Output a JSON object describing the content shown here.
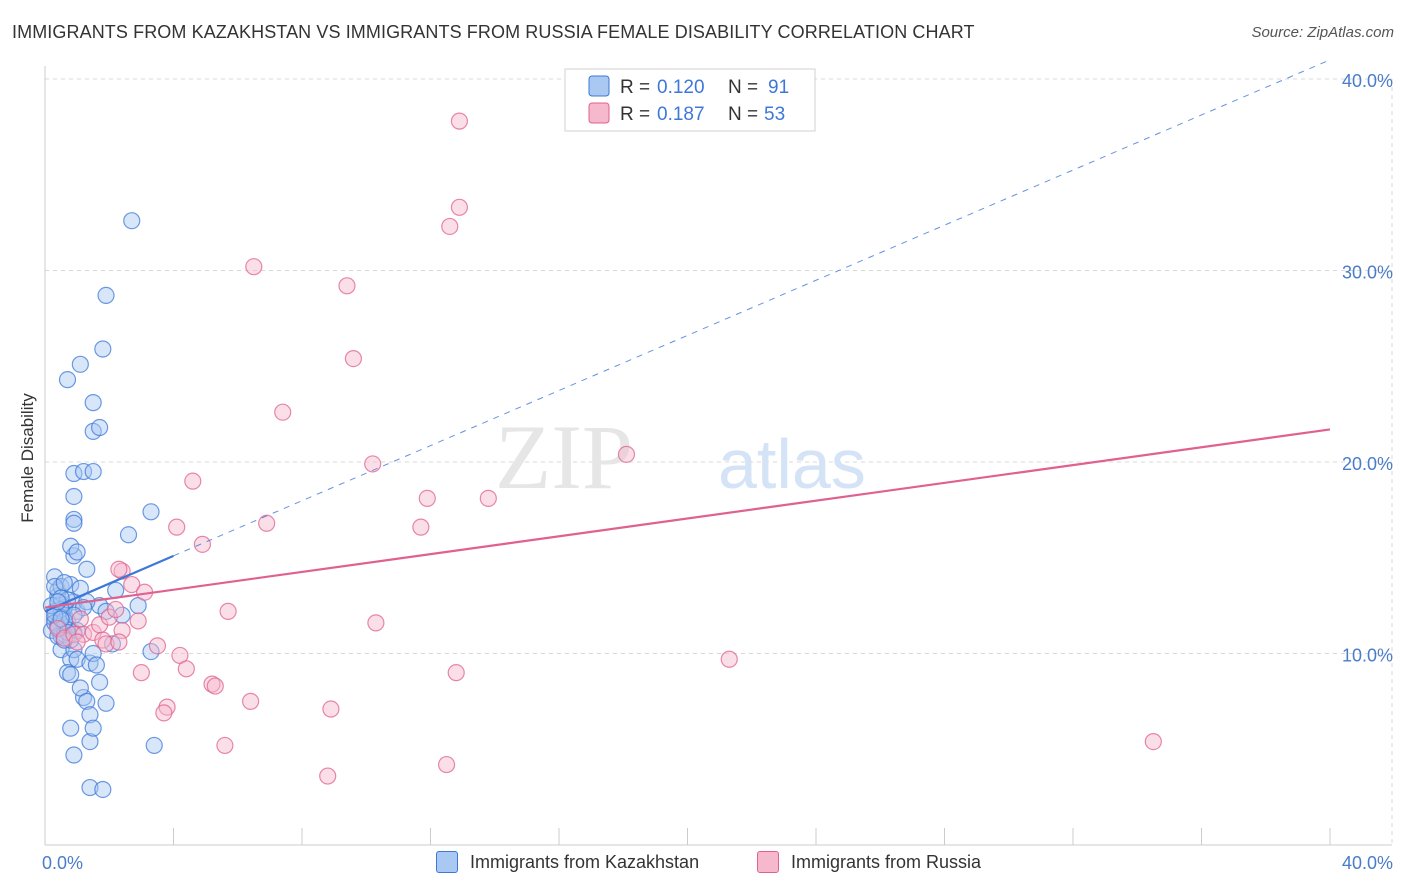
{
  "title": "IMMIGRANTS FROM KAZAKHSTAN VS IMMIGRANTS FROM RUSSIA FEMALE DISABILITY CORRELATION CHART",
  "source": "Source: ZipAtlas.com",
  "watermark": {
    "zip": "ZIP",
    "atlas": "atlas"
  },
  "colors": {
    "blue": "#3d78d8",
    "blue_fill": "#a9c8f2",
    "pink": "#e0608f",
    "pink_fill": "#f6b8cc",
    "grid": "#d9d9d9",
    "axis_text": "#4a7cc9"
  },
  "legend": {
    "r_label": "R =",
    "n_label": "N =",
    "series": [
      {
        "name": "Immigrants from Kazakhstan",
        "r": "0.120",
        "n": "91"
      },
      {
        "name": "Immigrants from Russia",
        "r": "0.187",
        "n": "53"
      }
    ]
  },
  "chart_data": {
    "type": "scatter",
    "title": "IMMIGRANTS FROM KAZAKHSTAN VS IMMIGRANTS FROM RUSSIA FEMALE DISABILITY CORRELATION CHART",
    "xlabel": "",
    "ylabel": "Female Disability",
    "xlim": [
      0,
      40
    ],
    "ylim": [
      0,
      40
    ],
    "x_tick_labels": [
      "0.0%",
      "40.0%"
    ],
    "y_ticks": [
      10,
      20,
      30,
      40
    ],
    "y_tick_labels": [
      "10.0%",
      "20.0%",
      "30.0%",
      "40.0%"
    ],
    "grid": true,
    "series": [
      {
        "name": "Immigrants from Kazakhstan",
        "color": "#3d78d8",
        "trend": {
          "x0": 0,
          "y0": 12.2,
          "x1": 4.0,
          "y1": 15.1,
          "dashed_extension_to": [
            40,
            41.0
          ]
        },
        "points": [
          [
            0.2,
            11.2
          ],
          [
            0.3,
            11.8
          ],
          [
            0.3,
            12.2
          ],
          [
            0.4,
            11.5
          ],
          [
            0.4,
            13.0
          ],
          [
            0.5,
            10.9
          ],
          [
            0.5,
            12.6
          ],
          [
            0.6,
            11.3
          ],
          [
            0.6,
            12.0
          ],
          [
            0.7,
            11.7
          ],
          [
            0.4,
            13.3
          ],
          [
            0.3,
            14.0
          ],
          [
            0.5,
            13.5
          ],
          [
            0.8,
            13.6
          ],
          [
            0.9,
            12.7
          ],
          [
            0.9,
            11.1
          ],
          [
            1.0,
            12.2
          ],
          [
            0.7,
            11.4
          ],
          [
            0.6,
            12.4
          ],
          [
            0.5,
            11.9
          ],
          [
            0.5,
            10.2
          ],
          [
            0.8,
            9.7
          ],
          [
            0.9,
            10.2
          ],
          [
            1.0,
            9.7
          ],
          [
            0.7,
            9.0
          ],
          [
            0.8,
            8.9
          ],
          [
            1.2,
            7.7
          ],
          [
            1.1,
            8.2
          ],
          [
            1.3,
            7.5
          ],
          [
            1.4,
            6.8
          ],
          [
            0.8,
            6.1
          ],
          [
            1.4,
            5.4
          ],
          [
            1.5,
            6.1
          ],
          [
            0.9,
            4.7
          ],
          [
            1.4,
            3.0
          ],
          [
            1.8,
            2.9
          ],
          [
            1.7,
            8.5
          ],
          [
            1.4,
            9.5
          ],
          [
            1.5,
            10.0
          ],
          [
            1.6,
            9.4
          ],
          [
            1.7,
            12.5
          ],
          [
            1.3,
            12.7
          ],
          [
            1.3,
            14.4
          ],
          [
            1.1,
            13.4
          ],
          [
            0.9,
            15.1
          ],
          [
            0.8,
            15.6
          ],
          [
            1.0,
            15.3
          ],
          [
            0.9,
            17.0
          ],
          [
            0.9,
            16.8
          ],
          [
            0.9,
            18.2
          ],
          [
            0.9,
            19.4
          ],
          [
            1.2,
            19.5
          ],
          [
            1.5,
            21.6
          ],
          [
            1.5,
            23.1
          ],
          [
            0.7,
            24.3
          ],
          [
            1.1,
            25.1
          ],
          [
            1.7,
            21.8
          ],
          [
            1.5,
            19.5
          ],
          [
            1.8,
            25.9
          ],
          [
            1.9,
            28.7
          ],
          [
            2.7,
            32.6
          ],
          [
            3.3,
            17.4
          ],
          [
            2.6,
            16.2
          ],
          [
            2.4,
            12.0
          ],
          [
            2.2,
            13.3
          ],
          [
            1.9,
            12.2
          ],
          [
            2.9,
            12.5
          ],
          [
            3.3,
            10.1
          ],
          [
            3.4,
            5.2
          ],
          [
            1.9,
            7.4
          ],
          [
            0.3,
            11.6
          ],
          [
            0.4,
            10.9
          ],
          [
            0.6,
            11.0
          ],
          [
            0.7,
            12.8
          ],
          [
            0.5,
            12.3
          ],
          [
            0.2,
            12.5
          ],
          [
            0.3,
            13.5
          ],
          [
            0.6,
            13.7
          ],
          [
            0.8,
            10.7
          ],
          [
            1.0,
            11.2
          ],
          [
            0.4,
            11.4
          ],
          [
            0.6,
            11.7
          ],
          [
            0.5,
            12.9
          ],
          [
            1.2,
            12.4
          ],
          [
            0.9,
            12.0
          ],
          [
            0.3,
            12.0
          ],
          [
            0.7,
            11.1
          ],
          [
            0.6,
            10.7
          ],
          [
            0.5,
            11.8
          ],
          [
            0.4,
            12.7
          ],
          [
            2.1,
            10.5
          ]
        ]
      },
      {
        "name": "Immigrants from Russia",
        "color": "#e0608f",
        "trend": {
          "x0": 0,
          "y0": 12.4,
          "x1": 40,
          "y1": 21.7
        },
        "points": [
          [
            0.4,
            11.3
          ],
          [
            0.6,
            10.8
          ],
          [
            0.9,
            11.0
          ],
          [
            1.1,
            11.8
          ],
          [
            1.2,
            11.0
          ],
          [
            1.5,
            11.1
          ],
          [
            1.8,
            10.7
          ],
          [
            1.7,
            11.5
          ],
          [
            1.9,
            10.5
          ],
          [
            2.0,
            11.9
          ],
          [
            2.2,
            12.3
          ],
          [
            2.4,
            11.2
          ],
          [
            2.3,
            10.6
          ],
          [
            2.7,
            13.6
          ],
          [
            2.4,
            14.3
          ],
          [
            2.3,
            14.4
          ],
          [
            3.1,
            13.2
          ],
          [
            3.5,
            10.4
          ],
          [
            3.0,
            9.0
          ],
          [
            3.8,
            7.2
          ],
          [
            3.7,
            6.9
          ],
          [
            4.2,
            9.9
          ],
          [
            4.4,
            9.2
          ],
          [
            5.2,
            8.4
          ],
          [
            5.3,
            8.3
          ],
          [
            5.7,
            12.2
          ],
          [
            5.6,
            5.2
          ],
          [
            6.4,
            7.5
          ],
          [
            4.1,
            16.6
          ],
          [
            4.6,
            19.0
          ],
          [
            4.9,
            15.7
          ],
          [
            6.9,
            16.8
          ],
          [
            6.5,
            30.2
          ],
          [
            7.4,
            22.6
          ],
          [
            8.8,
            3.6
          ],
          [
            8.9,
            7.1
          ],
          [
            9.4,
            29.2
          ],
          [
            9.6,
            25.4
          ],
          [
            10.2,
            19.9
          ],
          [
            10.3,
            11.6
          ],
          [
            11.7,
            16.6
          ],
          [
            11.9,
            18.1
          ],
          [
            12.6,
            32.3
          ],
          [
            12.9,
            33.3
          ],
          [
            12.9,
            37.8
          ],
          [
            12.5,
            4.2
          ],
          [
            12.8,
            9.0
          ],
          [
            13.8,
            18.1
          ],
          [
            18.1,
            20.4
          ],
          [
            21.3,
            9.7
          ],
          [
            34.5,
            5.4
          ],
          [
            1.0,
            10.6
          ],
          [
            2.9,
            11.7
          ]
        ]
      }
    ]
  }
}
